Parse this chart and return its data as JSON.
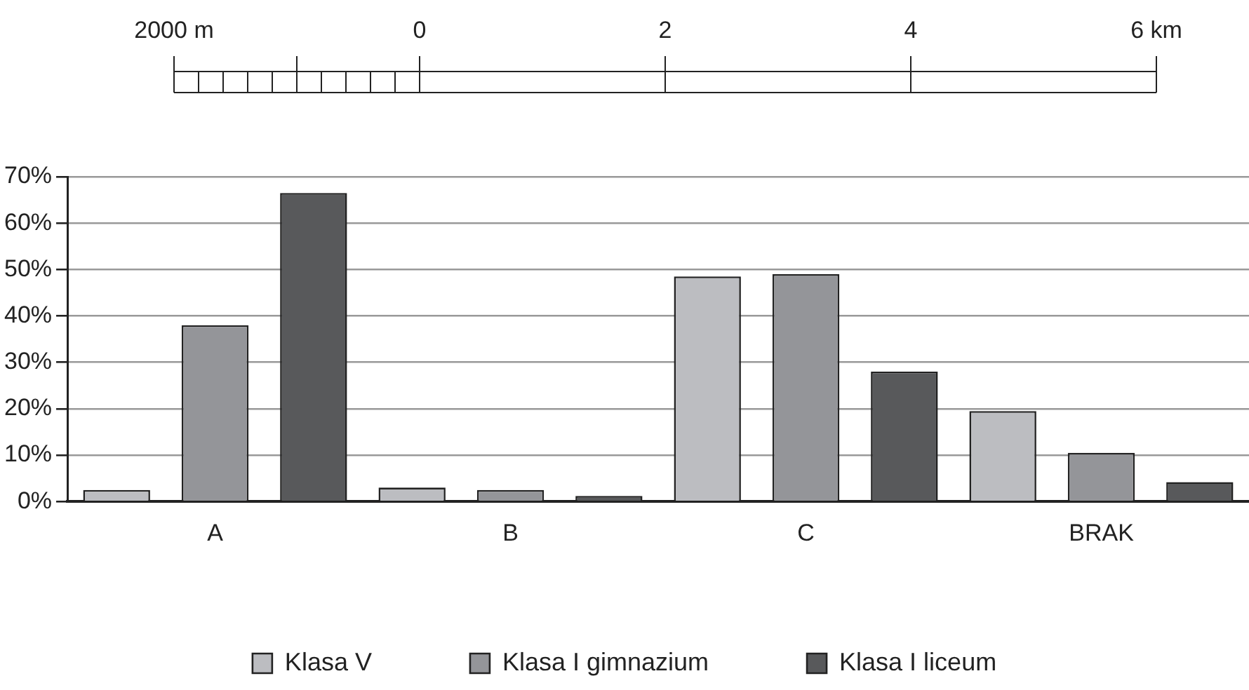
{
  "chart_data": {
    "type": "bar",
    "categories": [
      "A",
      "B",
      "C",
      "BRAK"
    ],
    "series": [
      {
        "name": "Klasa V",
        "color": "#bcbdc1",
        "values": [
          2.5,
          3,
          48.5,
          19.5
        ]
      },
      {
        "name": "Klasa I gimnazium",
        "color": "#949599",
        "values": [
          38,
          2.5,
          49,
          10.5
        ]
      },
      {
        "name": "Klasa I liceum",
        "color": "#58595b",
        "values": [
          66.5,
          1.2,
          28,
          4.2
        ]
      }
    ],
    "ylim": [
      0,
      70
    ],
    "yticks": [
      {
        "value": 0,
        "label": "0%"
      },
      {
        "value": 10,
        "label": "10%"
      },
      {
        "value": 20,
        "label": "20%"
      },
      {
        "value": 30,
        "label": "30%"
      },
      {
        "value": 40,
        "label": "40%"
      },
      {
        "value": 50,
        "label": "50%"
      },
      {
        "value": 60,
        "label": "60%"
      },
      {
        "value": 70,
        "label": "70%"
      }
    ],
    "grid": "y",
    "legend": "bottom",
    "annotations": [
      "2000 m",
      "0",
      "2",
      "4",
      "6 km"
    ]
  }
}
